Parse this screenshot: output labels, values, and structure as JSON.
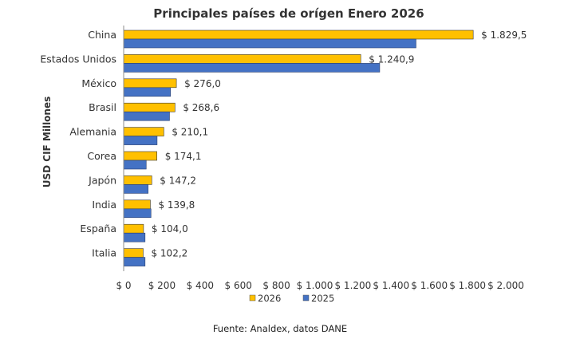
{
  "chart_data": {
    "type": "bar",
    "orientation": "horizontal",
    "title": "Principales países de orígen Enero 2026",
    "ylabel": "USD CIF Millones",
    "xlabel": "",
    "categories": [
      "China",
      "Estados Unidos",
      "México",
      "Brasil",
      "Alemania",
      "Corea",
      "Japón",
      "India",
      "España",
      "Italia"
    ],
    "series": [
      {
        "name": "2026",
        "color": "#FFC000",
        "values": [
          1829.5,
          1240.9,
          276.0,
          268.6,
          210.1,
          174.1,
          147.2,
          139.8,
          104.0,
          102.2
        ],
        "data_labels": [
          "$ 1.829,5",
          "$ 1.240,9",
          "$ 276,0",
          "$ 268,6",
          "$ 210,1",
          "$ 174,1",
          "$ 147,2",
          "$ 139,8",
          "$ 104,0",
          "$ 102,2"
        ]
      },
      {
        "name": "2025",
        "color": "#4472C4",
        "values": [
          1530,
          1340,
          245,
          240,
          175,
          118,
          128,
          143,
          112,
          112
        ]
      }
    ],
    "xlim": [
      0,
      2000
    ],
    "x_ticks": [
      0,
      200,
      400,
      600,
      800,
      1000,
      1200,
      1400,
      1600,
      1800,
      2000
    ],
    "x_tick_labels": [
      "$ 0",
      "$ 200",
      "$ 400",
      "$ 600",
      "$ 800",
      "$ 1.000",
      "$ 1.200",
      "$ 1.400",
      "$ 1.600",
      "$ 1.800",
      "$ 2.000"
    ],
    "grid": false,
    "legend_position": "bottom",
    "source": "Fuente: Analdex, datos DANE"
  }
}
